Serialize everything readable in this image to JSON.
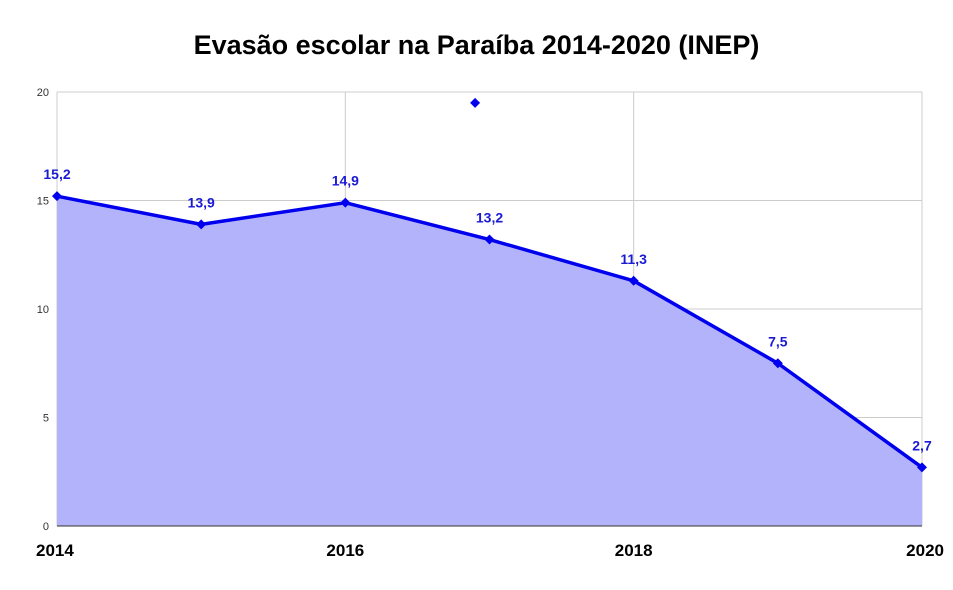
{
  "chart_data": {
    "type": "area",
    "title": "Evasão escolar na Paraíba 2014-2020 (INEP)",
    "xlabel": "",
    "ylabel": "",
    "ylim": [
      0,
      20
    ],
    "yticks": [
      0,
      5,
      10,
      15,
      20
    ],
    "xlim": [
      2014,
      2020
    ],
    "xticks": [
      "2014",
      "2016",
      "2018",
      "2020"
    ],
    "grid": true,
    "legend": "none",
    "series": [
      {
        "x": [
          2014,
          2015,
          2016,
          2017,
          2018,
          2019,
          2020
        ],
        "values": [
          15.2,
          13.9,
          14.9,
          13.2,
          11.3,
          7.5,
          2.7
        ],
        "labels": [
          "15,2",
          "13,9",
          "14,9",
          "13,2",
          "11,3",
          "7,5",
          "2,7"
        ],
        "line_color": "#0000ee",
        "fill_color": "#b3b3fb"
      }
    ],
    "outlier_points": [
      {
        "x": 2016.9,
        "y": 19.5
      }
    ]
  }
}
